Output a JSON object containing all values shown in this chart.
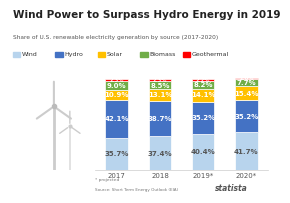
{
  "title": "Wind Power to Surpass Hydro Energy in 2019",
  "subtitle": "Share of U.S. renewable electricity generation by source (2017-2020)",
  "years": [
    "2017",
    "2018",
    "2019*",
    "2020*"
  ],
  "categories": [
    "Wind",
    "Hydro",
    "Solar",
    "Biomass",
    "Geothermal"
  ],
  "colors": [
    "#b8d4ed",
    "#4472c4",
    "#ffc000",
    "#70ad47",
    "#ff0000"
  ],
  "values": {
    "Wind": [
      35.7,
      37.4,
      40.4,
      41.7
    ],
    "Hydro": [
      42.1,
      38.7,
      35.2,
      35.2
    ],
    "Solar": [
      10.9,
      13.1,
      14.1,
      15.4
    ],
    "Biomass": [
      9.0,
      8.5,
      8.2,
      7.7
    ],
    "Geothermal": [
      2.3,
      2.3,
      2.2,
      2.0
    ]
  },
  "label_colors": {
    "Wind": "#555555",
    "Hydro": "#ffffff",
    "Solar": "#ffffff",
    "Biomass": "#ffffff",
    "Geothermal": "#ffffff"
  },
  "background_color": "#ffffff",
  "note": "* projected",
  "source": "Source: Short Term Energy Outlook (EIA)",
  "bar_width": 0.52,
  "ylim": [
    0,
    108
  ],
  "title_fontsize": 7.5,
  "subtitle_fontsize": 4.2,
  "legend_fontsize": 4.5,
  "tick_fontsize": 5,
  "label_fontsize_large": 5.0,
  "label_fontsize_small": 3.8
}
